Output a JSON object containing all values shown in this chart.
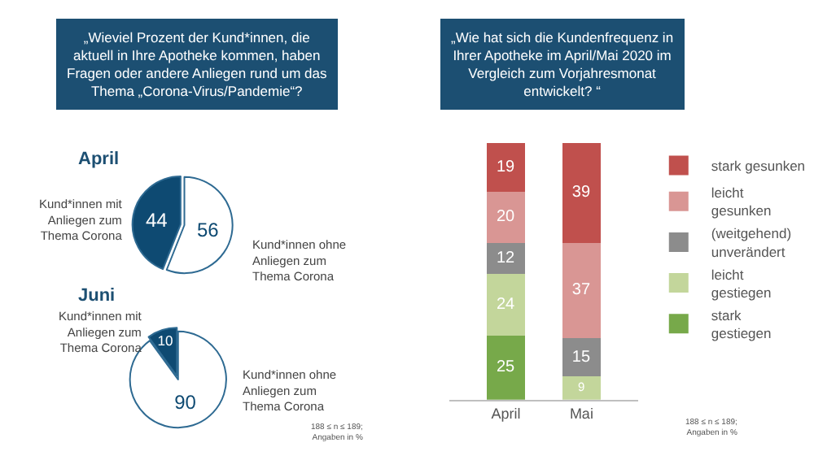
{
  "chart_data": [
    {
      "type": "pie",
      "title": "„Wieviel Prozent der Kund*innen, die aktuell in Ihre Apotheke kommen, haben Fragen oder andere Anliegen rund um das Thema „Corona-Virus/Pandemie“?",
      "subtitle": "April",
      "categories": [
        "Kund*innen mit Anliegen zum Thema Corona",
        "Kund*innen ohne Anliegen zum Thema Corona"
      ],
      "values": [
        44,
        56
      ],
      "colors": [
        "#0e4a72",
        "#ffffff"
      ],
      "data_labels": true
    },
    {
      "type": "pie",
      "subtitle": "Juni",
      "categories": [
        "Kund*innen mit Anliegen zum Thema Corona",
        "Kund*innen ohne Anliegen zum Thema Corona"
      ],
      "values": [
        10,
        90
      ],
      "colors": [
        "#0e4a72",
        "#ffffff"
      ],
      "data_labels": true,
      "annotations": [
        "188 ≤ n ≤ 189; Angaben in %"
      ]
    },
    {
      "type": "bar",
      "stacked": true,
      "title": "„Wie hat sich die Kundenfrequenz in Ihrer Apotheke im April/Mai 2020 im Vergleich zum Vorjahresmonat entwickelt? “",
      "categories": [
        "April",
        "Mai"
      ],
      "legend": "right",
      "series": [
        {
          "name": "stark gestiegen",
          "color": "#77a94a",
          "values": [
            25,
            0
          ],
          "value_labels": [
            "25",
            null
          ]
        },
        {
          "name": "leicht gestiegen",
          "color": "#c3d69b",
          "values": [
            24,
            9
          ],
          "value_labels": [
            "24",
            "9"
          ]
        },
        {
          "name": "(weitgehend) unverändert",
          "color": "#8c8c8c",
          "values": [
            12,
            15
          ],
          "value_labels": [
            "12",
            "15"
          ]
        },
        {
          "name": "leicht gesunken",
          "color": "#d99694",
          "values": [
            20,
            37
          ],
          "value_labels": [
            "20",
            "37"
          ]
        },
        {
          "name": "stark gesunken",
          "color": "#c0504d",
          "values": [
            19,
            39
          ],
          "value_labels": [
            "19",
            "39"
          ]
        }
      ],
      "annotations": [
        "188 ≤ n ≤ 189; Angaben in %"
      ]
    }
  ]
}
